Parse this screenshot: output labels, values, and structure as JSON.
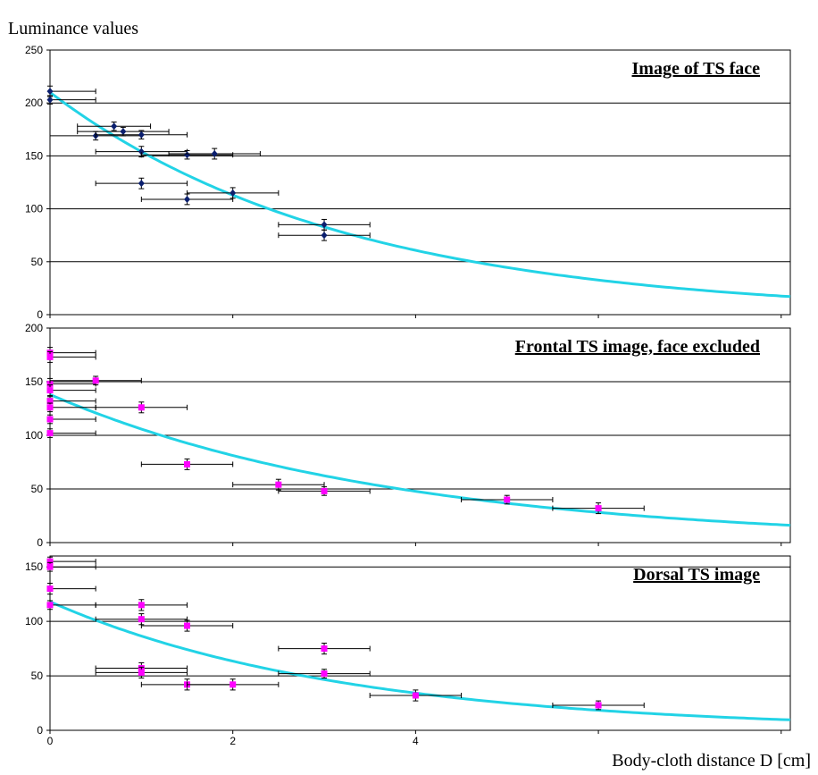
{
  "chart_data": {
    "type": "scatter",
    "ylabel": "Luminance values",
    "xlabel": "Body-cloth distance D [cm]",
    "x_ticks": [
      "0",
      "2",
      "4"
    ],
    "xlim": [
      0,
      8.1
    ],
    "grid": "horizontal",
    "fit_color": "#22d3e6",
    "panels": [
      {
        "title": "Image of TS face",
        "ylim": [
          0,
          250
        ],
        "y_ticks": [
          "0",
          "50",
          "100",
          "150",
          "200",
          "250"
        ],
        "marker_color": "#0b1f6e",
        "marker": "diamond",
        "fit": {
          "a": 210,
          "k": 0.31
        },
        "points": [
          {
            "x": 0,
            "y": 211,
            "xerr": 0.5,
            "yerr": 5
          },
          {
            "x": 0,
            "y": 203,
            "xerr": 0.5,
            "yerr": 4
          },
          {
            "x": 0.5,
            "y": 169,
            "xerr": 0.5,
            "yerr": 4
          },
          {
            "x": 0.7,
            "y": 178,
            "xerr": 0.4,
            "yerr": 4
          },
          {
            "x": 0.8,
            "y": 173,
            "xerr": 0.5,
            "yerr": 4
          },
          {
            "x": 1.0,
            "y": 170,
            "xerr": 0.5,
            "yerr": 4
          },
          {
            "x": 1.0,
            "y": 154,
            "xerr": 0.5,
            "yerr": 5
          },
          {
            "x": 1.0,
            "y": 124,
            "xerr": 0.5,
            "yerr": 5
          },
          {
            "x": 1.5,
            "y": 109,
            "xerr": 0.5,
            "yerr": 5
          },
          {
            "x": 1.5,
            "y": 151,
            "xerr": 0.5,
            "yerr": 4
          },
          {
            "x": 1.8,
            "y": 152,
            "xerr": 0.5,
            "yerr": 5
          },
          {
            "x": 2.0,
            "y": 115,
            "xerr": 0.5,
            "yerr": 5
          },
          {
            "x": 3.0,
            "y": 85,
            "xerr": 0.5,
            "yerr": 5
          },
          {
            "x": 3.0,
            "y": 75,
            "xerr": 0.5,
            "yerr": 5
          }
        ]
      },
      {
        "title": "Frontal TS image, face excluded",
        "ylim": [
          0,
          200
        ],
        "y_ticks": [
          "0",
          "50",
          "100",
          "150",
          "200"
        ],
        "marker_color": "#ff00ff",
        "marker": "square",
        "fit": {
          "a": 138,
          "k": 0.265
        },
        "points": [
          {
            "x": 0,
            "y": 177,
            "xerr": 0.5,
            "yerr": 5
          },
          {
            "x": 0,
            "y": 173,
            "xerr": 0.5,
            "yerr": 5
          },
          {
            "x": 0,
            "y": 148,
            "xerr": 0.5,
            "yerr": 5
          },
          {
            "x": 0,
            "y": 142,
            "xerr": 0.5,
            "yerr": 5
          },
          {
            "x": 0,
            "y": 132,
            "xerr": 0.5,
            "yerr": 4
          },
          {
            "x": 0,
            "y": 126,
            "xerr": 0.5,
            "yerr": 4
          },
          {
            "x": 0,
            "y": 115,
            "xerr": 0.5,
            "yerr": 4
          },
          {
            "x": 0,
            "y": 102,
            "xerr": 0.5,
            "yerr": 4
          },
          {
            "x": 0.5,
            "y": 151,
            "xerr": 0.5,
            "yerr": 4
          },
          {
            "x": 1.0,
            "y": 126,
            "xerr": 0.5,
            "yerr": 5
          },
          {
            "x": 1.5,
            "y": 73,
            "xerr": 0.5,
            "yerr": 5
          },
          {
            "x": 2.5,
            "y": 54,
            "xerr": 0.5,
            "yerr": 5
          },
          {
            "x": 3.0,
            "y": 48,
            "xerr": 0.5,
            "yerr": 4
          },
          {
            "x": 5.0,
            "y": 40,
            "xerr": 0.5,
            "yerr": 4
          },
          {
            "x": 6.0,
            "y": 32,
            "xerr": 0.5,
            "yerr": 5
          }
        ]
      },
      {
        "title": "Dorsal TS image",
        "ylim": [
          0,
          160
        ],
        "y_ticks": [
          "0",
          "50",
          "100",
          "150"
        ],
        "marker_color": "#ff00ff",
        "marker": "square",
        "fit": {
          "a": 118,
          "k": 0.31
        },
        "points": [
          {
            "x": 0,
            "y": 155,
            "xerr": 0.5,
            "yerr": 4
          },
          {
            "x": 0,
            "y": 150,
            "xerr": 0.5,
            "yerr": 4
          },
          {
            "x": 0,
            "y": 130,
            "xerr": 0.5,
            "yerr": 5
          },
          {
            "x": 0,
            "y": 115,
            "xerr": 0.5,
            "yerr": 4
          },
          {
            "x": 1.0,
            "y": 115,
            "xerr": 0.5,
            "yerr": 5
          },
          {
            "x": 1.0,
            "y": 102,
            "xerr": 0.5,
            "yerr": 5
          },
          {
            "x": 1.0,
            "y": 57,
            "xerr": 0.5,
            "yerr": 5
          },
          {
            "x": 1.0,
            "y": 53,
            "xerr": 0.5,
            "yerr": 5
          },
          {
            "x": 1.5,
            "y": 96,
            "xerr": 0.5,
            "yerr": 5
          },
          {
            "x": 1.5,
            "y": 42,
            "xerr": 0.5,
            "yerr": 5
          },
          {
            "x": 2.0,
            "y": 42,
            "xerr": 0.5,
            "yerr": 5
          },
          {
            "x": 3.0,
            "y": 75,
            "xerr": 0.5,
            "yerr": 5
          },
          {
            "x": 3.0,
            "y": 52,
            "xerr": 0.5,
            "yerr": 4
          },
          {
            "x": 4.0,
            "y": 32,
            "xerr": 0.5,
            "yerr": 5
          },
          {
            "x": 6.0,
            "y": 23,
            "xerr": 0.5,
            "yerr": 4
          }
        ]
      }
    ]
  }
}
